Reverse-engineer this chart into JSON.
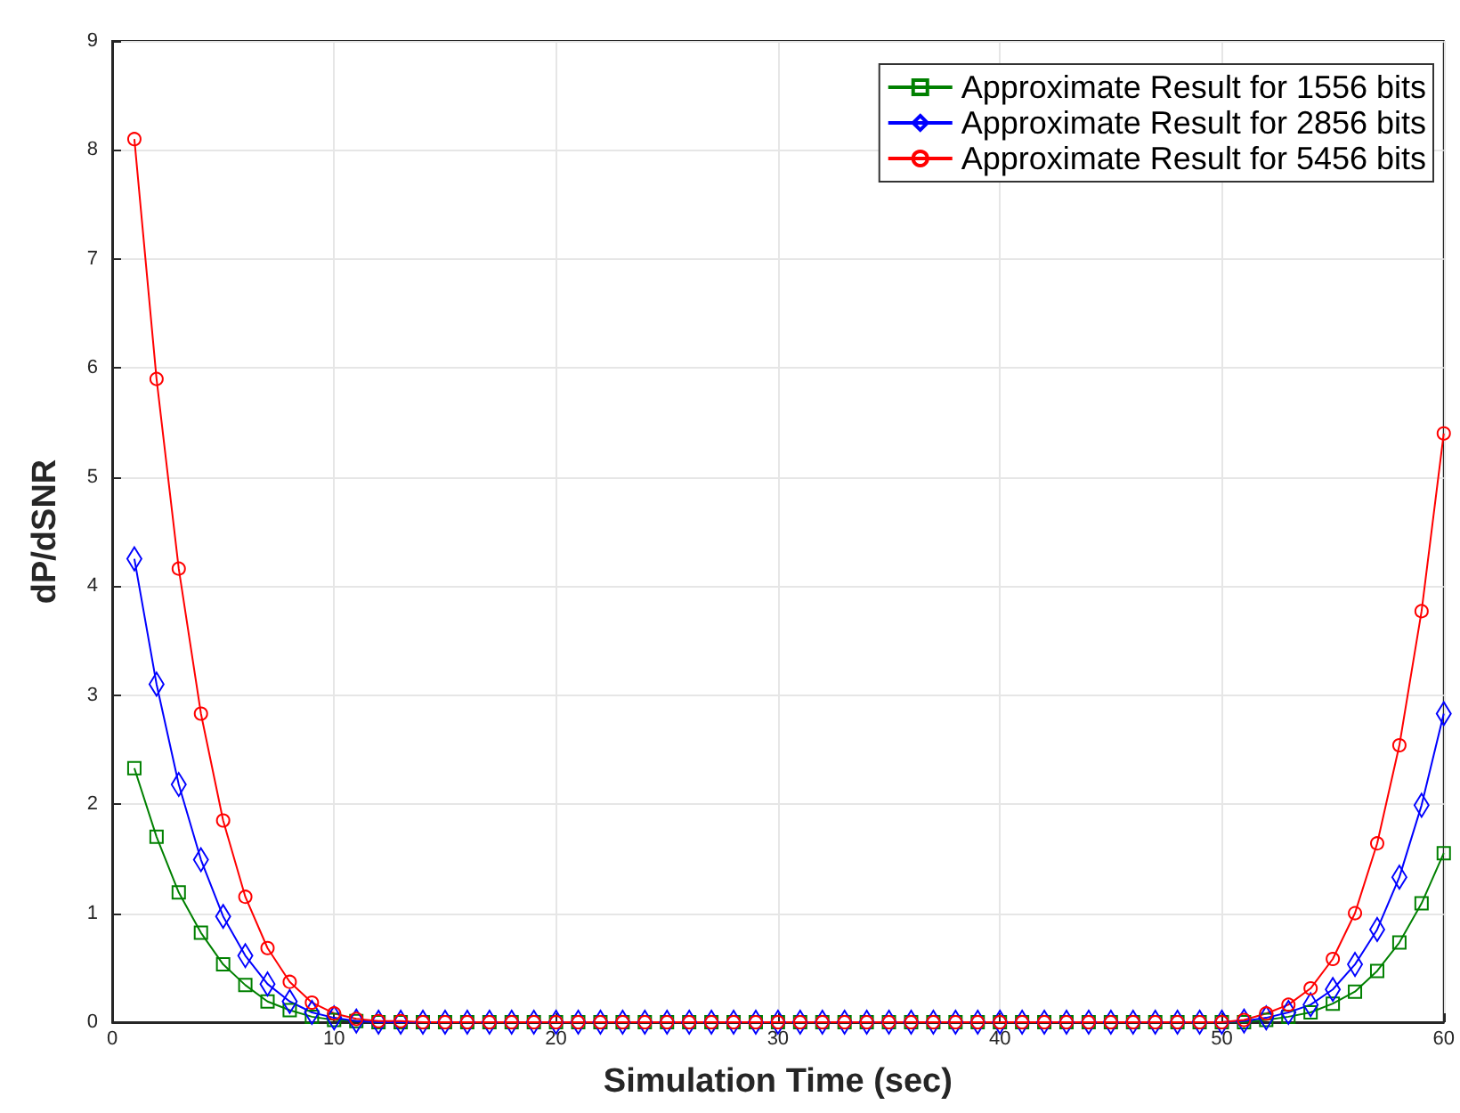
{
  "chart_data": {
    "type": "line",
    "xlabel": "Simulation Time (sec)",
    "ylabel": "dP/dSNR",
    "x": [
      1,
      2,
      3,
      4,
      5,
      6,
      7,
      8,
      9,
      10,
      11,
      12,
      13,
      14,
      15,
      16,
      17,
      18,
      19,
      20,
      21,
      22,
      23,
      24,
      25,
      26,
      27,
      28,
      29,
      30,
      31,
      32,
      33,
      34,
      35,
      36,
      37,
      38,
      39,
      40,
      41,
      42,
      43,
      44,
      45,
      46,
      47,
      48,
      49,
      50,
      51,
      52,
      53,
      54,
      55,
      56,
      57,
      58,
      59,
      60
    ],
    "series": [
      {
        "name": "Approximate Result for 1556 bits",
        "color": "#008000",
        "marker": "square",
        "values": [
          2.33,
          1.7,
          1.19,
          0.82,
          0.53,
          0.34,
          0.19,
          0.11,
          0.05,
          0.02,
          0.01,
          0,
          0,
          0,
          0,
          0,
          0,
          0,
          0,
          0,
          0,
          0,
          0,
          0,
          0,
          0,
          0,
          0,
          0,
          0,
          0,
          0,
          0,
          0,
          0,
          0,
          0,
          0,
          0,
          0,
          0,
          0,
          0,
          0,
          0,
          0,
          0,
          0,
          0,
          0,
          0,
          0.02,
          0.05,
          0.09,
          0.17,
          0.28,
          0.47,
          0.73,
          1.09,
          1.55
        ]
      },
      {
        "name": "Approximate Result for 2856 bits",
        "color": "#0000ff",
        "marker": "diamond",
        "values": [
          4.25,
          3.1,
          2.18,
          1.49,
          0.97,
          0.61,
          0.35,
          0.19,
          0.09,
          0.04,
          0.01,
          0,
          0,
          0,
          0,
          0,
          0,
          0,
          0,
          0,
          0,
          0,
          0,
          0,
          0,
          0,
          0,
          0,
          0,
          0,
          0,
          0,
          0,
          0,
          0,
          0,
          0,
          0,
          0,
          0,
          0,
          0,
          0,
          0,
          0,
          0,
          0,
          0,
          0,
          0,
          0.01,
          0.04,
          0.09,
          0.16,
          0.3,
          0.53,
          0.85,
          1.33,
          1.99,
          2.83
        ]
      },
      {
        "name": "Approximate Result for 5456 bits",
        "color": "#ff0000",
        "marker": "circle",
        "values": [
          8.1,
          5.9,
          4.16,
          2.83,
          1.85,
          1.15,
          0.68,
          0.37,
          0.18,
          0.08,
          0.03,
          0.01,
          0.01,
          0,
          0,
          0,
          0,
          0,
          0,
          0,
          0,
          0,
          0,
          0,
          0,
          0,
          0,
          0,
          0,
          0,
          0,
          0,
          0,
          0,
          0,
          0,
          0,
          0,
          0,
          0,
          0,
          0,
          0,
          0,
          0,
          0,
          0,
          0,
          0,
          0,
          0.02,
          0.08,
          0.16,
          0.31,
          0.58,
          1.0,
          1.64,
          2.54,
          3.77,
          5.4
        ]
      }
    ],
    "xlim": [
      0,
      60
    ],
    "xticks": [
      0,
      10,
      20,
      30,
      40,
      50,
      60
    ],
    "ylim": [
      0,
      9
    ],
    "yticks": [
      0,
      1,
      2,
      3,
      4,
      5,
      6,
      7,
      8,
      9
    ],
    "grid": true,
    "legend": "top right"
  }
}
